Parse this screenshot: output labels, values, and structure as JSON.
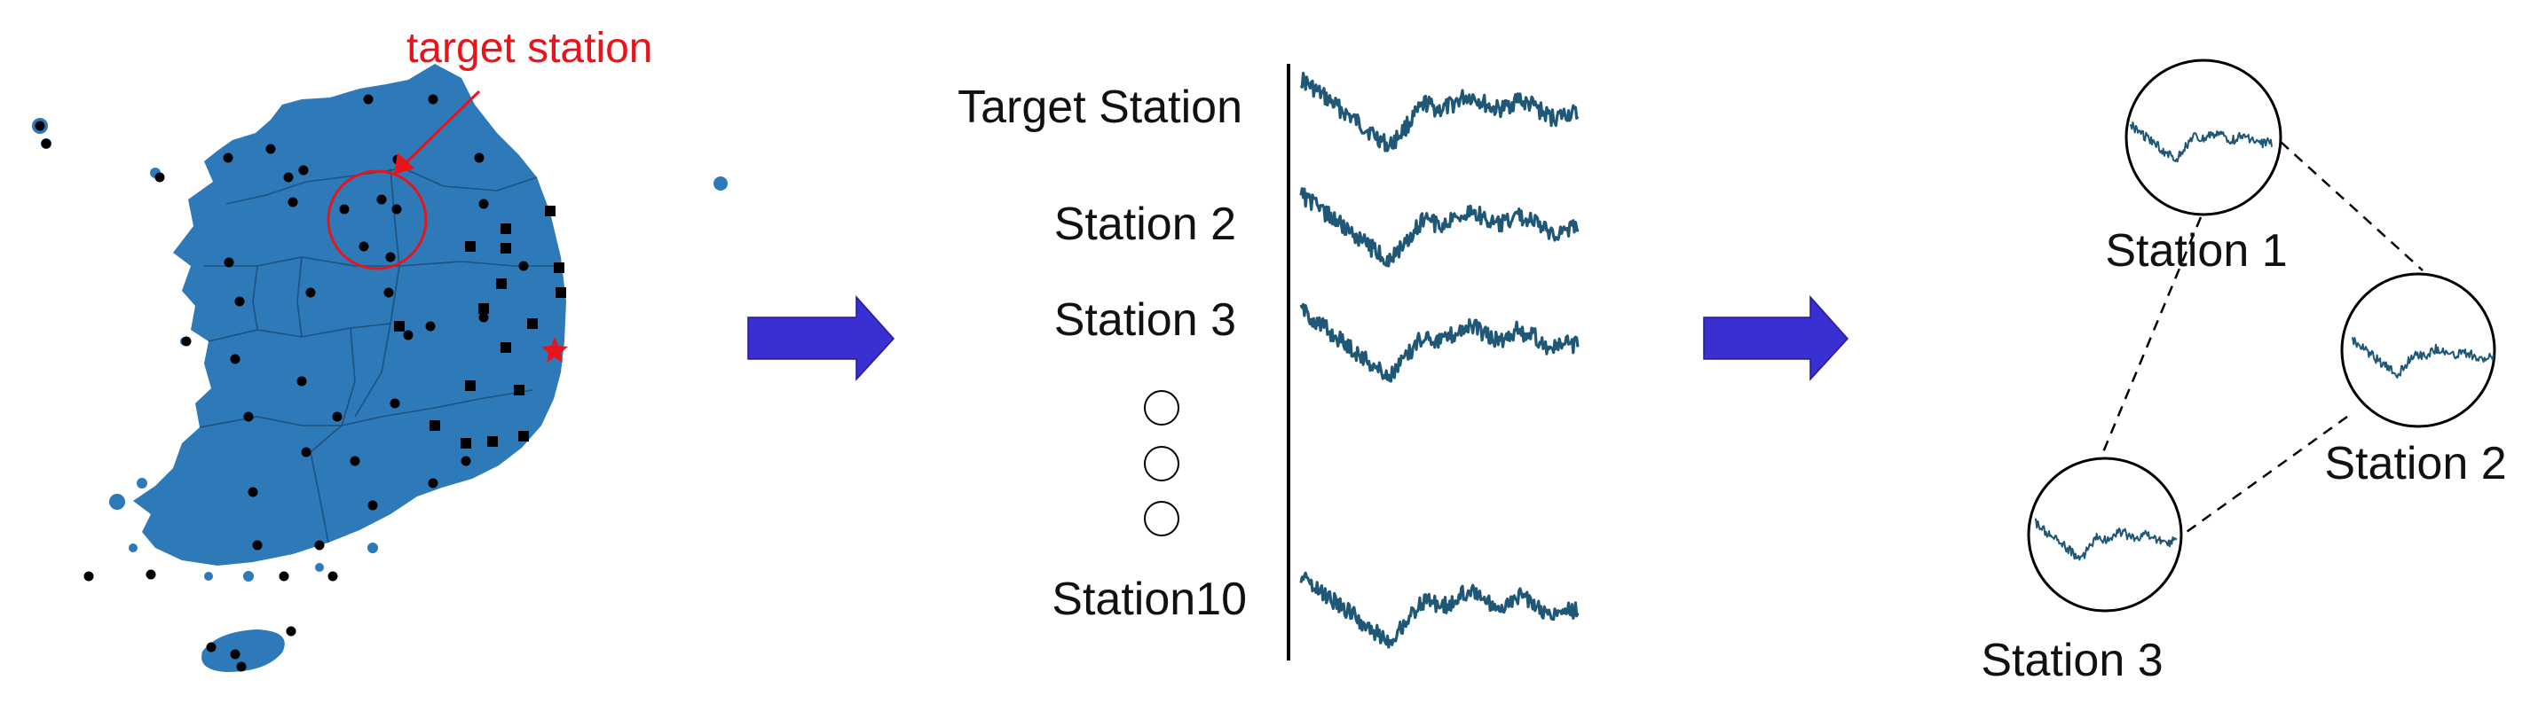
{
  "map_panel": {
    "annotation": "target station",
    "annotation_color": "#e8141b",
    "land_color": "#2e79b8"
  },
  "arrow_color": "#3a2fd0",
  "series_color": "#1f5777",
  "stations_panel": {
    "labels": [
      "Target Station",
      "Station 2",
      "Station 3",
      "Station10"
    ],
    "ellipsis": "vertical-dots-circles"
  },
  "graph_panel": {
    "nodes": [
      "Station 1",
      "Station 2",
      "Station 3"
    ],
    "edges": [
      [
        "Station 1",
        "Station 2"
      ],
      [
        "Station 1",
        "Station 3"
      ],
      [
        "Station 2",
        "Station 3"
      ]
    ]
  }
}
